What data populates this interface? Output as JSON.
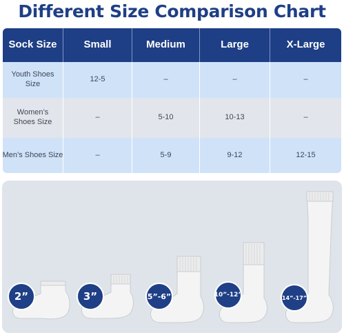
{
  "title": "Different Size Comparison Chart",
  "table": {
    "headers": [
      "Sock Size",
      "Small",
      "Medium",
      "Large",
      "X-Large"
    ],
    "rows": [
      {
        "label": "Youth Shoes Size",
        "values": [
          "12-5",
          "–",
          "–",
          "–"
        ]
      },
      {
        "label": "Women’s Shoes Size",
        "values": [
          "–",
          "5-10",
          "10-13",
          "–"
        ]
      },
      {
        "label": "Men’s Shoes Size",
        "values": [
          "–",
          "5-9",
          "9-12",
          "12-15"
        ]
      }
    ]
  },
  "socks": [
    {
      "height_label": "2”",
      "icon": "ankle-sock-icon"
    },
    {
      "height_label": "3”",
      "icon": "quarter-sock-icon"
    },
    {
      "height_label": "5”-6”",
      "icon": "crew-sock-icon"
    },
    {
      "height_label": "10”-12”",
      "icon": "mid-calf-sock-icon"
    },
    {
      "height_label": "14”-17”",
      "icon": "knee-high-sock-icon"
    }
  ],
  "colors": {
    "brand_blue": "#1f3f86",
    "row_blue": "#cfe2f8",
    "row_grey": "#e2e6ec",
    "panel": "#dfe4ea"
  }
}
